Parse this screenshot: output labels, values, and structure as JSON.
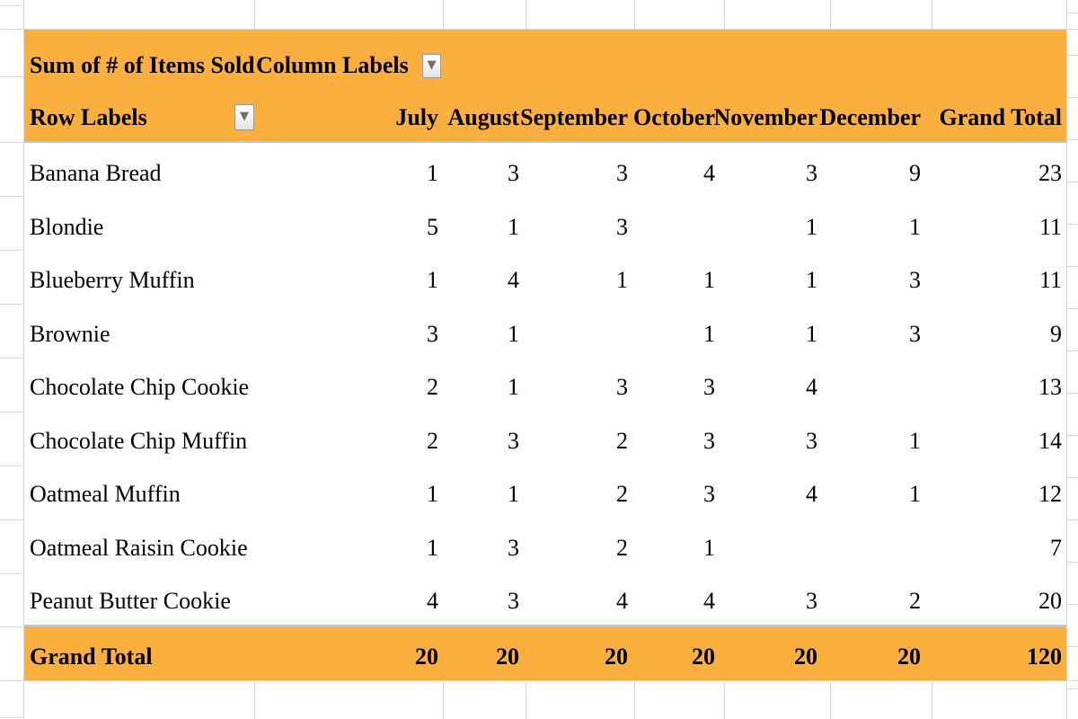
{
  "pivot": {
    "value_label": "Sum of # of Items Sold",
    "column_labels_caption": "Column Labels",
    "row_labels_caption": "Row Labels",
    "columns": [
      "July",
      "August",
      "September",
      "October",
      "November",
      "December",
      "Grand Total"
    ],
    "rows": [
      {
        "label": "Banana Bread",
        "values": [
          "1",
          "3",
          "3",
          "4",
          "3",
          "9",
          "23"
        ]
      },
      {
        "label": "Blondie",
        "values": [
          "5",
          "1",
          "3",
          "",
          "1",
          "1",
          "11"
        ]
      },
      {
        "label": "Blueberry Muffin",
        "values": [
          "1",
          "4",
          "1",
          "1",
          "1",
          "3",
          "11"
        ]
      },
      {
        "label": "Brownie",
        "values": [
          "3",
          "1",
          "",
          "1",
          "1",
          "3",
          "9"
        ]
      },
      {
        "label": "Chocolate Chip Cookie",
        "values": [
          "2",
          "1",
          "3",
          "3",
          "4",
          "",
          "13"
        ]
      },
      {
        "label": "Chocolate Chip Muffin",
        "values": [
          "2",
          "3",
          "2",
          "3",
          "3",
          "1",
          "14"
        ]
      },
      {
        "label": "Oatmeal Muffin",
        "values": [
          "1",
          "1",
          "2",
          "3",
          "4",
          "1",
          "12"
        ]
      },
      {
        "label": "Oatmeal Raisin Cookie",
        "values": [
          "1",
          "3",
          "2",
          "1",
          "",
          "",
          "7"
        ]
      },
      {
        "label": "Peanut Butter Cookie",
        "values": [
          "4",
          "3",
          "4",
          "4",
          "3",
          "2",
          "20"
        ]
      }
    ],
    "grand_total": {
      "label": "Grand Total",
      "values": [
        "20",
        "20",
        "20",
        "20",
        "20",
        "20",
        "120"
      ]
    }
  },
  "icons": {
    "filter_dropdown": "▼"
  },
  "colors": {
    "header_bg": "#fbaf3f",
    "grid_line": "#d8d8d8",
    "pivot_border_blue": "#aecbeb",
    "text": "#000000"
  }
}
